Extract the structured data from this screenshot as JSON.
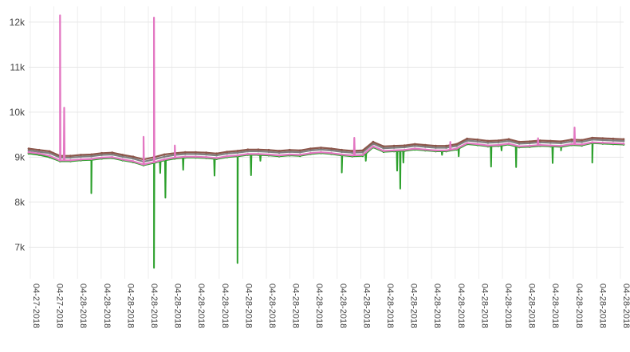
{
  "chart_data": {
    "type": "line",
    "title": "",
    "xlabel": "",
    "ylabel": "",
    "ylim": [
      6300,
      12350
    ],
    "y_ticks": [
      {
        "value": 7000,
        "label": "7k"
      },
      {
        "value": 8000,
        "label": "8k"
      },
      {
        "value": 9000,
        "label": "9k"
      },
      {
        "value": 10000,
        "label": "10k"
      },
      {
        "value": 11000,
        "label": "11k"
      },
      {
        "value": 12000,
        "label": "12k"
      }
    ],
    "x_tick_labels": [
      "04-27-2018",
      "04-27-2018",
      "04-28-2018",
      "04-28-2018",
      "04-28-2018",
      "04-28-2018",
      "04-28-2018",
      "04-28-2018",
      "04-28-2018",
      "04-28-2018",
      "04-28-2018",
      "04-28-2018",
      "04-28-2018",
      "04-28-2018",
      "04-28-2018",
      "04-28-2018",
      "04-28-2018",
      "04-28-2018",
      "04-28-2018",
      "04-28-2018",
      "04-28-2018",
      "04-28-2018",
      "04-28-2018",
      "04-28-2018",
      "04-28-2018",
      "04-28-2018"
    ],
    "grid": true,
    "legend": "none",
    "colors": {
      "open": "#7f7f7f",
      "high": "#8c564b",
      "low": "#2ca02c",
      "close": "#e377c2"
    },
    "series": [
      {
        "key": "open",
        "values": [
          9150,
          9120,
          9090,
          8990,
          8990,
          9010,
          9020,
          9050,
          9060,
          9010,
          8970,
          8900,
          8950,
          9010,
          9050,
          9070,
          9070,
          9060,
          9040,
          9080,
          9100,
          9130,
          9130,
          9120,
          9100,
          9120,
          9110,
          9150,
          9170,
          9150,
          9120,
          9100,
          9110,
          9300,
          9200,
          9210,
          9220,
          9250,
          9230,
          9210,
          9210,
          9250,
          9370,
          9350,
          9320,
          9330,
          9360,
          9300,
          9310,
          9330,
          9320,
          9310,
          9350,
          9340,
          9390,
          9380,
          9370,
          9360
        ]
      },
      {
        "key": "high",
        "values": [
          9190,
          9160,
          9130,
          9030,
          9030,
          9050,
          9060,
          9090,
          9100,
          9050,
          9010,
          8950,
          9000,
          9060,
          9090,
          9110,
          9110,
          9100,
          9080,
          9120,
          9140,
          9170,
          9170,
          9160,
          9140,
          9160,
          9150,
          9190,
          9210,
          9190,
          9160,
          9140,
          9150,
          9340,
          9240,
          9250,
          9260,
          9290,
          9270,
          9250,
          9250,
          9290,
          9410,
          9390,
          9360,
          9370,
          9400,
          9340,
          9350,
          9370,
          9360,
          9350,
          9390,
          9380,
          9430,
          9420,
          9410,
          9400
        ]
      },
      {
        "key": "low",
        "values": [
          9080,
          9050,
          9000,
          8910,
          8910,
          8930,
          8940,
          8970,
          8980,
          8930,
          8890,
          8820,
          8870,
          8930,
          8970,
          8990,
          8990,
          8980,
          8960,
          9000,
          9020,
          9050,
          9050,
          9040,
          9020,
          9040,
          9030,
          9070,
          9090,
          9070,
          9040,
          9020,
          9030,
          9220,
          9120,
          9130,
          9140,
          9170,
          9150,
          9130,
          9130,
          9170,
          9290,
          9270,
          9240,
          9250,
          9280,
          9220,
          9230,
          9250,
          9240,
          9230,
          9270,
          9260,
          9310,
          9300,
          9290,
          9280
        ]
      },
      {
        "key": "close",
        "values": [
          9110,
          9080,
          9030,
          8930,
          8930,
          8950,
          8960,
          8990,
          9000,
          8950,
          8910,
          8840,
          8890,
          8950,
          8990,
          9010,
          9010,
          9000,
          8980,
          9020,
          9040,
          9070,
          9070,
          9060,
          9040,
          9060,
          9050,
          9090,
          9110,
          9090,
          9060,
          9040,
          9050,
          9240,
          9140,
          9150,
          9160,
          9190,
          9170,
          9150,
          9150,
          9190,
          9310,
          9290,
          9260,
          9270,
          9300,
          9240,
          9250,
          9270,
          9260,
          9250,
          9290,
          9280,
          9330,
          9320,
          9310,
          9300
        ]
      }
    ],
    "spikes": {
      "close": [
        {
          "i": 3,
          "value": 12150
        },
        {
          "i": 3.4,
          "value": 10100
        },
        {
          "i": 11,
          "value": 9450
        },
        {
          "i": 12,
          "value": 12100
        },
        {
          "i": 14,
          "value": 9260
        },
        {
          "i": 31.2,
          "value": 9430
        },
        {
          "i": 40.4,
          "value": 9340
        },
        {
          "i": 48.8,
          "value": 9420
        },
        {
          "i": 52.3,
          "value": 9660
        }
      ],
      "low": [
        {
          "i": 6,
          "value": 8200
        },
        {
          "i": 12,
          "value": 6540
        },
        {
          "i": 12.6,
          "value": 8650
        },
        {
          "i": 13.1,
          "value": 8100
        },
        {
          "i": 14.8,
          "value": 8720
        },
        {
          "i": 17.8,
          "value": 8590
        },
        {
          "i": 20,
          "value": 6650
        },
        {
          "i": 21.3,
          "value": 8600
        },
        {
          "i": 22.2,
          "value": 8920
        },
        {
          "i": 30,
          "value": 8660
        },
        {
          "i": 32.3,
          "value": 8920
        },
        {
          "i": 35.3,
          "value": 8700
        },
        {
          "i": 35.6,
          "value": 8300
        },
        {
          "i": 35.9,
          "value": 8880
        },
        {
          "i": 39.6,
          "value": 9050
        },
        {
          "i": 41.2,
          "value": 9020
        },
        {
          "i": 44.3,
          "value": 8790
        },
        {
          "i": 45.3,
          "value": 9150
        },
        {
          "i": 46.7,
          "value": 8780
        },
        {
          "i": 50.2,
          "value": 8870
        },
        {
          "i": 51.0,
          "value": 9150
        },
        {
          "i": 54.0,
          "value": 8880
        }
      ]
    }
  }
}
